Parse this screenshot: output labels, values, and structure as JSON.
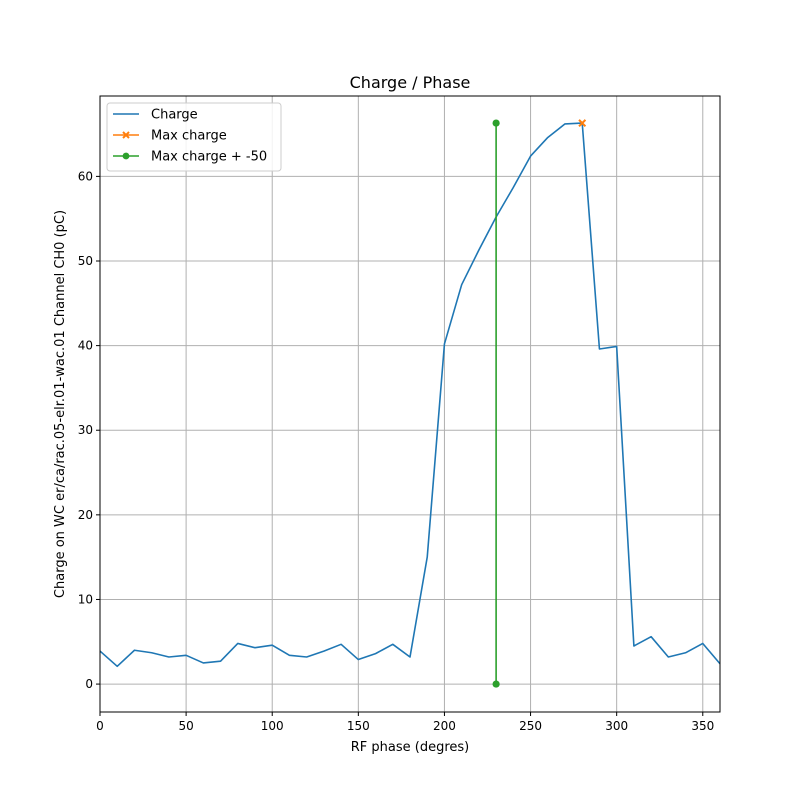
{
  "chart_data": {
    "type": "line",
    "title": "Charge / Phase",
    "xlabel": "RF phase (degres)",
    "ylabel": "Charge on WC er/ca/rac.05-elr.01-wac.01 Channel CH0 (pC)",
    "xlim": [
      0,
      360
    ],
    "ylim": [
      -3.3,
      69.5
    ],
    "xticks": [
      0,
      50,
      100,
      150,
      200,
      250,
      300,
      350
    ],
    "yticks": [
      0,
      10,
      20,
      30,
      40,
      50,
      60
    ],
    "grid": true,
    "legend_position": "top-left",
    "series": [
      {
        "name": "Charge",
        "color": "#1f77b4",
        "marker": "none",
        "x": [
          0,
          10,
          20,
          30,
          40,
          50,
          60,
          70,
          80,
          90,
          100,
          110,
          120,
          130,
          140,
          150,
          160,
          170,
          180,
          190,
          200,
          210,
          220,
          230,
          240,
          250,
          260,
          270,
          280,
          290,
          300,
          310,
          320,
          330,
          340,
          350,
          360
        ],
        "y": [
          3.9,
          2.1,
          4.0,
          3.7,
          3.2,
          3.4,
          2.5,
          2.7,
          4.8,
          4.3,
          4.6,
          3.4,
          3.2,
          3.9,
          4.7,
          2.9,
          3.6,
          4.7,
          3.2,
          15.0,
          40.2,
          47.2,
          51.3,
          55.2,
          58.7,
          62.4,
          64.6,
          66.2,
          66.3,
          39.6,
          39.9,
          4.5,
          5.6,
          3.2,
          3.7,
          4.8,
          2.4
        ]
      },
      {
        "name": "Max charge",
        "color": "#ff7f0e",
        "marker": "x",
        "x": [
          280
        ],
        "y": [
          66.3
        ]
      },
      {
        "name": "Max charge + -50",
        "color": "#2ca02c",
        "marker": "o",
        "x": [
          230,
          230
        ],
        "y": [
          66.3,
          0
        ]
      }
    ]
  }
}
